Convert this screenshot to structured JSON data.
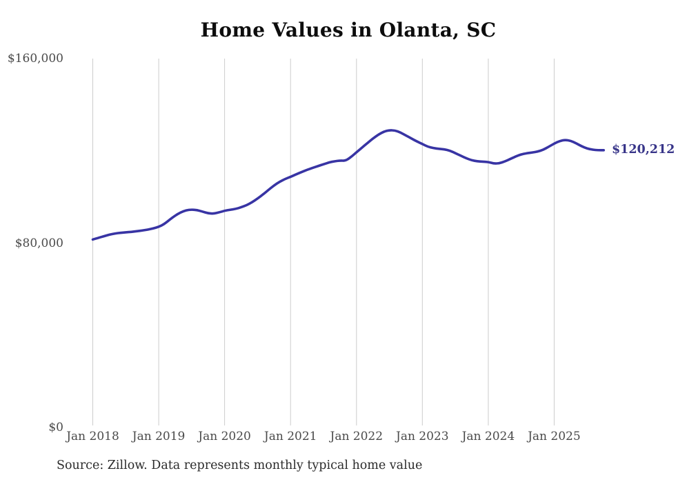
{
  "chart": {
    "title": "Home Values in Olanta, SC",
    "end_label": "$120,212",
    "source_note": "Source: Zillow. Data represents monthly typical home value"
  },
  "chart_data": {
    "type": "line",
    "title": "Home Values in Olanta, SC",
    "xlabel": "",
    "ylabel": "",
    "ylim": [
      0,
      160000
    ],
    "y_tick_labels": [
      "$160,000",
      "$80,000",
      "$0"
    ],
    "y_tick_values": [
      160000,
      80000,
      0
    ],
    "x_tick_labels": [
      "Jan 2018",
      "Jan 2019",
      "Jan 2020",
      "Jan 2021",
      "Jan 2022",
      "Jan 2023",
      "Jan 2024",
      "Jan 2025"
    ],
    "x_start_month": "Jan 2018",
    "x_end_month": "Oct 2025",
    "interval": "monthly",
    "grid": "vertical-only",
    "legend": "none",
    "line_color": "#3834a4",
    "gridline_color": "#cccccc",
    "end_label": "$120,212",
    "final_value": 120212,
    "source_note": "Source: Zillow. Data represents monthly typical home value",
    "series": [
      {
        "name": "Typical home value",
        "values": [
          81400,
          82100,
          82800,
          83500,
          84000,
          84300,
          84500,
          84700,
          85000,
          85300,
          85700,
          86200,
          86900,
          88100,
          90000,
          91800,
          93200,
          94100,
          94400,
          94200,
          93500,
          92800,
          92600,
          93200,
          93900,
          94300,
          94700,
          95400,
          96300,
          97600,
          99200,
          101000,
          103000,
          104900,
          106500,
          107700,
          108600,
          109700,
          110700,
          111700,
          112500,
          113300,
          114100,
          114900,
          115400,
          115700,
          115600,
          117200,
          119300,
          121300,
          123300,
          125300,
          127000,
          128300,
          128900,
          128800,
          127900,
          126600,
          125300,
          124000,
          122900,
          121700,
          121100,
          120800,
          120600,
          120000,
          118900,
          117800,
          116700,
          115800,
          115400,
          115200,
          115100,
          114400,
          114500,
          115300,
          116400,
          117500,
          118400,
          118900,
          119200,
          119600,
          120400,
          121700,
          123100,
          124200,
          124700,
          124300,
          123200,
          121900,
          120900,
          120400,
          120200,
          120212
        ]
      }
    ]
  }
}
